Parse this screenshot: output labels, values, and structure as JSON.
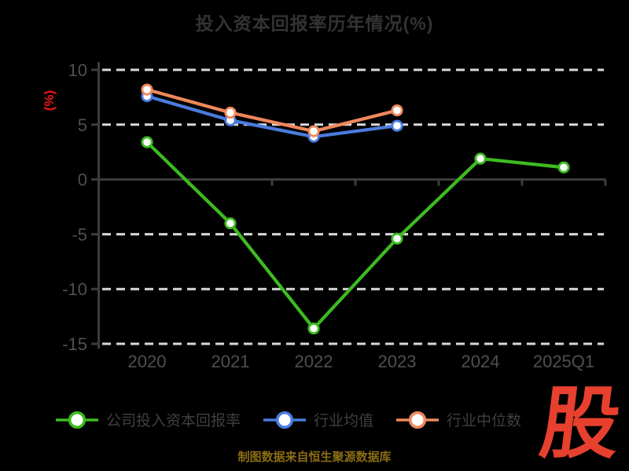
{
  "header": {
    "title": "投入资本回报率历年情况(%)"
  },
  "chart_data": {
    "type": "line",
    "title": "投入资本回报率历年情况(%)",
    "xlabel": "",
    "ylabel": "(%)",
    "categories": [
      "2020",
      "2021",
      "2022",
      "2023",
      "2024",
      "2025Q1"
    ],
    "yticks": [
      10,
      5,
      0,
      -5,
      -10,
      -15
    ],
    "ylim": [
      -16.5,
      11
    ],
    "grid": "horizontal-dashed-white, solid axis at zero",
    "legend_position": "bottom",
    "series": [
      {
        "name": "公司投入资本回报率",
        "color": "#3dbb21",
        "values": [
          3.4,
          -4.0,
          -13.6,
          -5.4,
          1.9,
          1.1
        ]
      },
      {
        "name": "行业均值",
        "color": "#4a7cde",
        "values": [
          7.6,
          5.4,
          3.9,
          4.9,
          null,
          null
        ]
      },
      {
        "name": "行业中位数",
        "color": "#f0885c",
        "values": [
          8.2,
          6.1,
          4.4,
          6.3,
          null,
          null
        ]
      }
    ]
  },
  "footer": {
    "caption": "制图数据来自恒生聚源数据库"
  },
  "logo": {
    "text": "股"
  },
  "colors": {
    "background": "#000000",
    "title": "#333333",
    "tick_label": "#4f4f4f",
    "axis": "#3d3d3d",
    "gridline": "#d9d9d9",
    "ylabel": "#f01414",
    "caption": "#8a6d15",
    "logo": "#e8402e",
    "marker_fill": "#ffffff"
  }
}
